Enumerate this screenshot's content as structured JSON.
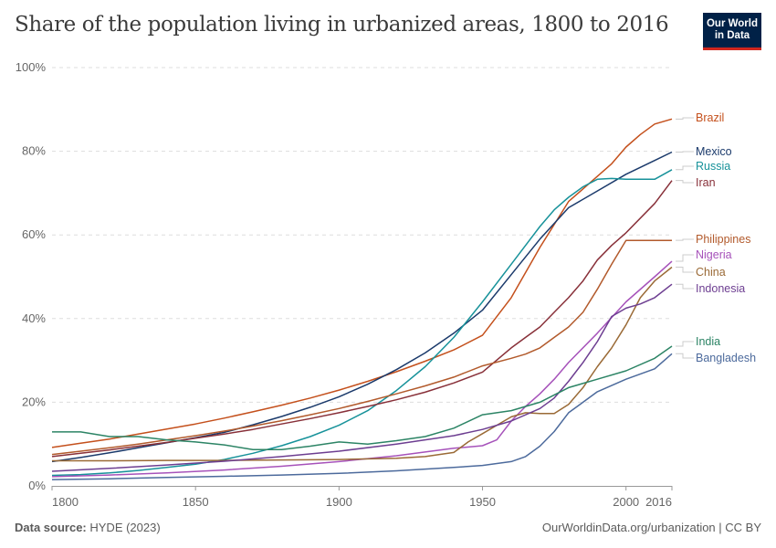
{
  "header": {
    "title": "Share of the population living in urbanized areas, 1800 to 2016",
    "logo_line1": "Our World",
    "logo_line2": "in Data"
  },
  "footer": {
    "source_label": "Data source:",
    "source_value": "HYDE (2023)",
    "credit": "OurWorldinData.org/urbanization | CC BY"
  },
  "chart_data": {
    "type": "line",
    "title": "Share of the population living in urbanized areas, 1800 to 2016",
    "xlabel": "",
    "ylabel": "",
    "xlim": [
      1800,
      2016
    ],
    "ylim": [
      0,
      100
    ],
    "x_ticks": [
      1800,
      1850,
      1900,
      1950,
      2000,
      2016
    ],
    "y_ticks": [
      0,
      20,
      40,
      60,
      80,
      100
    ],
    "y_tick_labels": [
      "0%",
      "20%",
      "40%",
      "60%",
      "80%",
      "100%"
    ],
    "grid": "horizontal-dashed",
    "legend": "right (line-end labels)",
    "series": [
      {
        "name": "Brazil",
        "color": "#c4501c",
        "x": [
          1800,
          1810,
          1820,
          1830,
          1840,
          1850,
          1860,
          1870,
          1880,
          1890,
          1900,
          1910,
          1920,
          1930,
          1940,
          1950,
          1960,
          1970,
          1980,
          1990,
          1995,
          2000,
          2005,
          2010,
          2016
        ],
        "y": [
          9.2,
          10.2,
          11.2,
          12.4,
          13.6,
          14.8,
          16.2,
          17.7,
          19.3,
          21.0,
          22.9,
          25.0,
          27.3,
          29.8,
          32.5,
          36.0,
          45.0,
          57.0,
          68.0,
          74.0,
          77.0,
          81.0,
          84.0,
          86.5,
          87.7
        ]
      },
      {
        "name": "Mexico",
        "color": "#1b3a6b",
        "x": [
          1800,
          1810,
          1820,
          1830,
          1840,
          1850,
          1860,
          1870,
          1880,
          1890,
          1900,
          1910,
          1920,
          1930,
          1940,
          1950,
          1960,
          1970,
          1980,
          1990,
          2000,
          2010,
          2016
        ],
        "y": [
          5.8,
          6.8,
          7.9,
          9.1,
          10.3,
          11.5,
          12.8,
          14.6,
          16.6,
          18.8,
          21.3,
          24.3,
          27.8,
          31.8,
          36.5,
          42.0,
          50.5,
          59.0,
          66.5,
          70.5,
          74.5,
          77.8,
          79.8
        ]
      },
      {
        "name": "Russia",
        "color": "#17929a",
        "x": [
          1800,
          1810,
          1820,
          1830,
          1840,
          1850,
          1860,
          1870,
          1880,
          1890,
          1900,
          1910,
          1920,
          1930,
          1940,
          1950,
          1960,
          1970,
          1975,
          1980,
          1985,
          1990,
          1995,
          2000,
          2005,
          2010,
          2016
        ],
        "y": [
          2.5,
          2.7,
          3.1,
          3.7,
          4.4,
          5.2,
          6.3,
          7.8,
          9.6,
          11.8,
          14.5,
          18.0,
          22.8,
          28.5,
          35.5,
          44.0,
          53.0,
          62.0,
          66.0,
          69.0,
          71.5,
          73.3,
          73.5,
          73.3,
          73.3,
          73.3,
          75.6
        ]
      },
      {
        "name": "Iran",
        "color": "#883039",
        "x": [
          1800,
          1810,
          1820,
          1830,
          1840,
          1850,
          1860,
          1870,
          1880,
          1890,
          1900,
          1910,
          1920,
          1930,
          1940,
          1950,
          1960,
          1965,
          1970,
          1975,
          1980,
          1985,
          1988,
          1990,
          1995,
          2000,
          2010,
          2016
        ],
        "y": [
          7.0,
          7.8,
          8.6,
          9.5,
          10.4,
          11.4,
          12.4,
          13.5,
          14.8,
          16.1,
          17.5,
          19.0,
          20.6,
          22.4,
          24.6,
          27.2,
          33.0,
          35.5,
          38.0,
          41.5,
          45.0,
          49.0,
          52.0,
          54.0,
          57.5,
          60.5,
          67.5,
          73.0
        ]
      },
      {
        "name": "Philippines",
        "color": "#b25a2c",
        "x": [
          1800,
          1810,
          1820,
          1830,
          1840,
          1850,
          1860,
          1870,
          1880,
          1890,
          1900,
          1910,
          1920,
          1930,
          1940,
          1950,
          1960,
          1965,
          1970,
          1975,
          1980,
          1985,
          1990,
          1995,
          2000,
          2005,
          2010,
          2016
        ],
        "y": [
          7.5,
          8.3,
          9.1,
          10.0,
          11.0,
          12.0,
          13.1,
          14.3,
          15.6,
          17.0,
          18.5,
          20.2,
          22.0,
          23.9,
          26.0,
          28.7,
          30.5,
          31.5,
          33.0,
          35.5,
          38.0,
          41.5,
          47.0,
          53.0,
          58.7,
          58.7,
          58.7,
          58.7
        ]
      },
      {
        "name": "Nigeria",
        "color": "#a652ba",
        "x": [
          1800,
          1820,
          1840,
          1860,
          1880,
          1900,
          1920,
          1940,
          1950,
          1955,
          1960,
          1965,
          1970,
          1975,
          1980,
          1990,
          2000,
          2010,
          2016
        ],
        "y": [
          2.2,
          2.6,
          3.1,
          3.8,
          4.7,
          5.8,
          7.2,
          9.0,
          9.6,
          11.0,
          15.5,
          19.0,
          22.0,
          25.5,
          29.5,
          36.5,
          44.0,
          50.0,
          53.7
        ]
      },
      {
        "name": "China",
        "color": "#9a6a36",
        "x": [
          1800,
          1820,
          1840,
          1860,
          1880,
          1900,
          1920,
          1930,
          1940,
          1945,
          1950,
          1955,
          1960,
          1965,
          1970,
          1975,
          1980,
          1985,
          1990,
          1995,
          2000,
          2005,
          2010,
          2016
        ],
        "y": [
          6.0,
          6.0,
          6.1,
          6.1,
          6.2,
          6.3,
          6.6,
          7.0,
          8.0,
          10.5,
          12.5,
          14.5,
          16.5,
          17.5,
          17.3,
          17.3,
          19.5,
          23.5,
          28.5,
          33.0,
          38.5,
          45.0,
          49.0,
          52.3
        ]
      },
      {
        "name": "Indonesia",
        "color": "#6d3e91",
        "x": [
          1800,
          1820,
          1840,
          1860,
          1880,
          1900,
          1920,
          1940,
          1950,
          1960,
          1970,
          1975,
          1980,
          1985,
          1990,
          1995,
          2000,
          2005,
          2010,
          2016
        ],
        "y": [
          3.5,
          4.2,
          5.0,
          5.9,
          7.0,
          8.3,
          10.0,
          12.0,
          13.5,
          15.5,
          18.5,
          21.0,
          25.0,
          29.5,
          34.5,
          40.5,
          42.5,
          43.5,
          45.0,
          48.2
        ]
      },
      {
        "name": "India",
        "color": "#2c8465",
        "x": [
          1800,
          1810,
          1820,
          1830,
          1840,
          1850,
          1860,
          1870,
          1880,
          1890,
          1900,
          1910,
          1920,
          1930,
          1940,
          1950,
          1960,
          1970,
          1980,
          1990,
          2000,
          2010,
          2016
        ],
        "y": [
          12.9,
          12.9,
          11.8,
          11.8,
          11.0,
          10.5,
          9.8,
          8.7,
          8.7,
          9.5,
          10.5,
          10.0,
          10.8,
          11.8,
          13.8,
          17.0,
          18.0,
          20.0,
          23.5,
          25.5,
          27.5,
          30.5,
          33.4
        ]
      },
      {
        "name": "Bangladesh",
        "color": "#4c6a9c",
        "x": [
          1800,
          1820,
          1840,
          1860,
          1880,
          1900,
          1920,
          1940,
          1950,
          1960,
          1965,
          1970,
          1975,
          1980,
          1985,
          1990,
          2000,
          2010,
          2016
        ],
        "y": [
          1.5,
          1.7,
          2.0,
          2.3,
          2.6,
          3.0,
          3.6,
          4.4,
          4.9,
          5.8,
          7.0,
          9.5,
          13.0,
          17.5,
          20.0,
          22.5,
          25.5,
          28.0,
          31.6
        ]
      }
    ],
    "end_labels": [
      {
        "name": "Brazil",
        "label_value": 87.7
      },
      {
        "name": "Mexico",
        "label_value": 79.8
      },
      {
        "name": "Russia",
        "label_value": 75.6
      },
      {
        "name": "Iran",
        "label_value": 73.0
      },
      {
        "name": "Philippines",
        "label_value": 58.7
      },
      {
        "name": "Nigeria",
        "label_value": 53.7
      },
      {
        "name": "China",
        "label_value": 52.3
      },
      {
        "name": "Indonesia",
        "label_value": 48.2
      },
      {
        "name": "India",
        "label_value": 33.4
      },
      {
        "name": "Bangladesh",
        "label_value": 31.6
      }
    ]
  }
}
